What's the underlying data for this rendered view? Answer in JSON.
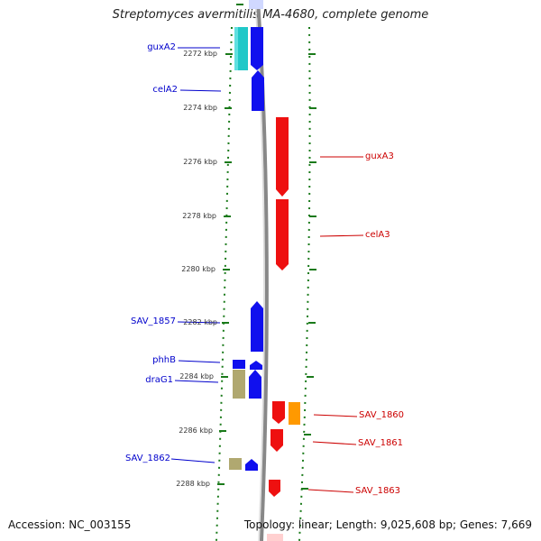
{
  "title": "Streptomyces avermitilis MA-4680, complete genome",
  "footer": {
    "accession": "Accession: NC_003155",
    "summary": "Topology: linear; Length: 9,025,608 bp; Genes: 7,669"
  },
  "axis": {
    "ticks": [
      "2272 kbp",
      "2274 kbp",
      "2276 kbp",
      "2278 kbp",
      "2280 kbp",
      "2282 kbp",
      "2284 kbp",
      "2286 kbp",
      "2288 kbp"
    ]
  },
  "genes_left": [
    {
      "label": "guxA2"
    },
    {
      "label": "celA2"
    },
    {
      "label": "SAV_1857"
    },
    {
      "label": "phhB"
    },
    {
      "label": "draG1"
    },
    {
      "label": "SAV_1862"
    }
  ],
  "genes_right": [
    {
      "label": "guxA3"
    },
    {
      "label": "celA3"
    },
    {
      "label": "SAV_1860"
    },
    {
      "label": "SAV_1861"
    },
    {
      "label": "SAV_1863"
    }
  ],
  "colors": {
    "forward": "#1010ee",
    "reverse": "#ee1010",
    "cyan": "#20c8c8",
    "olive": "#b0a870",
    "orange": "#ff9900",
    "tick_green": "#1a7a1a"
  }
}
